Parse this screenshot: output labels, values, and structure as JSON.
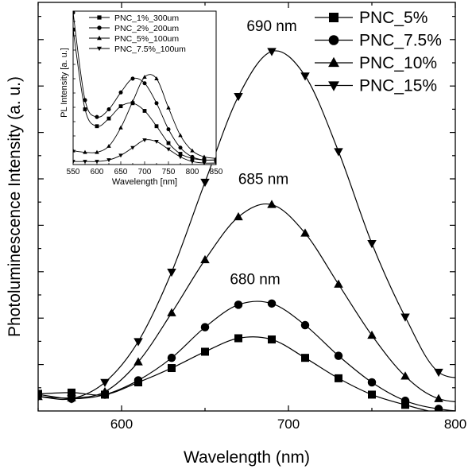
{
  "chart_data": [
    {
      "type": "line",
      "xlabel": "Wavelength (nm)",
      "ylabel": "Photoluminescence Intensity (a. u.)",
      "xlim": [
        550,
        800
      ],
      "ylim": [
        0,
        100
      ],
      "x_ticks": [
        "600",
        "700",
        "800"
      ],
      "legend_position": "top-right",
      "grid": false,
      "series": [
        {
          "name": "PNC_5%",
          "marker": "square",
          "x": [
            550,
            570,
            590,
            610,
            630,
            650,
            670,
            690,
            710,
            730,
            750,
            770,
            790
          ],
          "values": [
            4.2,
            4.5,
            4.0,
            7.0,
            10.5,
            14.5,
            17.8,
            17.5,
            13.0,
            8.0,
            4.0,
            1.5,
            -0.5
          ]
        },
        {
          "name": "PNC_7.5%",
          "marker": "circle",
          "x": [
            550,
            570,
            590,
            610,
            630,
            650,
            670,
            690,
            710,
            730,
            750,
            770,
            790
          ],
          "values": [
            4.0,
            3.0,
            4.0,
            7.5,
            13.0,
            20.5,
            26.0,
            26.3,
            21.0,
            13.5,
            7.0,
            2.5,
            0.5
          ]
        },
        {
          "name": "PNC_10%",
          "marker": "triangle",
          "x": [
            550,
            570,
            590,
            610,
            630,
            650,
            670,
            690,
            710,
            730,
            750,
            770,
            790
          ],
          "values": [
            3.5,
            3.2,
            4.7,
            12.0,
            24.0,
            37.0,
            47.5,
            50.5,
            43.5,
            31.0,
            18.5,
            8.5,
            3.0
          ]
        },
        {
          "name": "PNC_15%",
          "marker": "triangle-down",
          "x": [
            550,
            570,
            590,
            610,
            630,
            650,
            670,
            690,
            710,
            730,
            750,
            770,
            790
          ],
          "values": [
            3.5,
            3.0,
            7.0,
            17.0,
            34.0,
            56.0,
            77.0,
            88.0,
            82.0,
            63.5,
            41.0,
            23.0,
            9.5
          ]
        }
      ],
      "annotations": [
        {
          "text": "690 nm",
          "x": 690,
          "y": 93
        },
        {
          "text": "685 nm",
          "x": 685,
          "y": 55.5
        },
        {
          "text": "680 nm",
          "x": 680,
          "y": 31
        }
      ]
    },
    {
      "type": "line",
      "xlabel": "Wavelength [nm]",
      "ylabel": "PL Intensity [a. u.]",
      "xlim": [
        550,
        850
      ],
      "ylim": [
        0,
        100
      ],
      "x_ticks": [
        "550",
        "600",
        "650",
        "700",
        "750",
        "800",
        "850"
      ],
      "legend_position": "top",
      "grid": false,
      "series": [
        {
          "name": "PNC_1%_300um",
          "marker": "square",
          "x": [
            550,
            575,
            600,
            625,
            650,
            675,
            700,
            725,
            750,
            775,
            800,
            825,
            850
          ],
          "values": [
            88,
            36,
            25,
            30,
            38,
            40,
            35,
            25,
            14,
            7,
            4,
            3,
            3
          ]
        },
        {
          "name": "PNC_2%_200um",
          "marker": "circle",
          "x": [
            550,
            575,
            600,
            625,
            650,
            675,
            700,
            725,
            750,
            775,
            800,
            825,
            850
          ],
          "values": [
            99,
            42,
            31,
            36,
            47,
            56,
            53,
            40,
            23,
            11,
            5,
            3,
            3
          ]
        },
        {
          "name": "PNC_5%_100um",
          "marker": "triangle",
          "x": [
            550,
            575,
            600,
            625,
            650,
            675,
            700,
            725,
            750,
            775,
            800,
            825,
            850
          ],
          "values": [
            9,
            8,
            8,
            12,
            24,
            41,
            57,
            56,
            37,
            19,
            9,
            5,
            4
          ]
        },
        {
          "name": "PNC_7.5%_100um",
          "marker": "triangle-down",
          "x": [
            550,
            575,
            600,
            625,
            650,
            675,
            700,
            725,
            750,
            775,
            800,
            825,
            850
          ],
          "values": [
            2,
            2,
            2,
            3,
            6,
            11,
            16,
            15,
            10,
            5,
            2,
            1,
            1
          ]
        }
      ]
    }
  ]
}
